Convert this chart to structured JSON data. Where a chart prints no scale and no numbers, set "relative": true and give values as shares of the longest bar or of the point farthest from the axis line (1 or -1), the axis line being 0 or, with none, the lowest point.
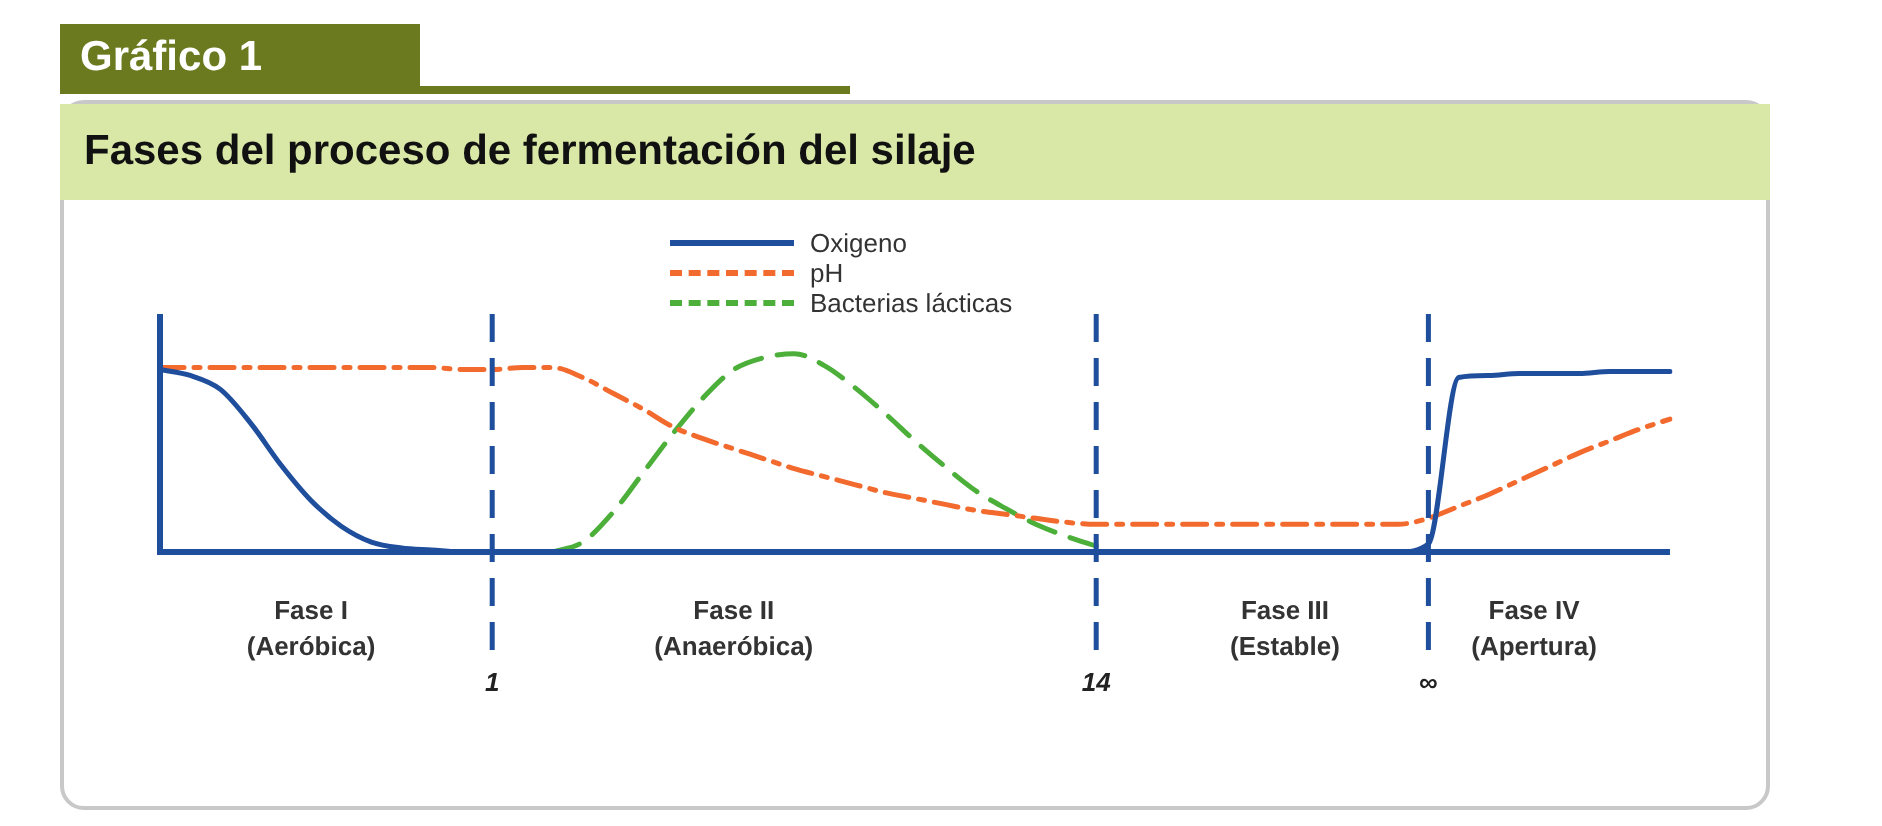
{
  "chart_data": {
    "type": "line",
    "title": "Fases del proceso de fermentación del silaje",
    "relative": true,
    "legend": "top",
    "marker": "none",
    "categories": [
      null,
      null,
      null,
      null,
      null,
      null,
      null,
      null,
      null,
      null,
      null,
      "1",
      null,
      null,
      null,
      null,
      null,
      null,
      null,
      null,
      null,
      null,
      null,
      null,
      null,
      null,
      null,
      null,
      null,
      null,
      null,
      "14",
      null,
      null,
      null,
      null,
      null,
      null,
      null,
      null,
      null,
      null,
      "∞",
      null,
      null,
      null,
      null,
      null,
      null,
      null,
      null
    ],
    "series": [
      {
        "name": "Oxigeno",
        "color": "#1f4e9c",
        "line_style": "solid",
        "values": [
          0.92,
          0.89,
          0.82,
          0.65,
          0.44,
          0.26,
          0.13,
          0.05,
          0.02,
          0.01,
          0,
          0,
          0,
          0,
          0,
          0,
          0,
          0,
          0,
          0,
          0,
          0,
          0,
          0,
          0,
          0,
          0,
          0,
          0,
          0,
          0,
          0,
          0,
          0,
          0,
          0,
          0,
          0,
          0,
          0,
          0,
          0,
          0.04,
          0.88,
          0.89,
          0.9,
          0.9,
          0.9,
          0.91,
          0.91,
          0.91
        ]
      },
      {
        "name": "pH",
        "color": "#f26a2e",
        "line_style": "dashdot",
        "values": [
          0.93,
          0.93,
          0.93,
          0.93,
          0.93,
          0.93,
          0.93,
          0.93,
          0.93,
          0.93,
          0.92,
          0.92,
          0.93,
          0.93,
          0.88,
          0.8,
          0.72,
          0.63,
          0.57,
          0.52,
          0.47,
          0.42,
          0.38,
          0.34,
          0.3,
          0.27,
          0.24,
          0.21,
          0.19,
          0.17,
          0.15,
          0.14,
          0.14,
          0.14,
          0.14,
          0.14,
          0.14,
          0.14,
          0.14,
          0.14,
          0.14,
          0.14,
          0.17,
          0.23,
          0.29,
          0.36,
          0.43,
          0.5,
          0.56,
          0.62,
          0.67
        ]
      },
      {
        "name": "Bacterias lácticas",
        "color": "#4caf3a",
        "line_style": "dashed",
        "values": [
          null,
          null,
          null,
          null,
          null,
          null,
          null,
          null,
          null,
          null,
          null,
          null,
          null,
          0,
          0.05,
          0.2,
          0.4,
          0.6,
          0.78,
          0.92,
          0.98,
          1,
          0.94,
          0.83,
          0.7,
          0.56,
          0.43,
          0.31,
          0.22,
          0.14,
          0.08,
          0.03,
          null,
          null,
          null,
          null,
          null,
          null,
          null,
          null,
          null,
          null,
          null,
          null,
          null,
          null,
          null,
          null,
          null,
          null,
          null
        ]
      }
    ],
    "ref_lines": [
      {
        "axis": "x",
        "value": "1",
        "color": "#1f4e9c",
        "line_style": "dashed"
      },
      {
        "axis": "x",
        "value": "14",
        "color": "#1f4e9c",
        "line_style": "dashed"
      },
      {
        "axis": "x",
        "value": "∞",
        "color": "#1f4e9c",
        "line_style": "dashed"
      }
    ],
    "annotations": [
      "Gráfico 1",
      "Fase I\n(Aeróbica)",
      "Fase II\n(Anaeróbica)",
      "Fase III\n(Estable)",
      "Fase IV\n(Apertura)"
    ]
  }
}
